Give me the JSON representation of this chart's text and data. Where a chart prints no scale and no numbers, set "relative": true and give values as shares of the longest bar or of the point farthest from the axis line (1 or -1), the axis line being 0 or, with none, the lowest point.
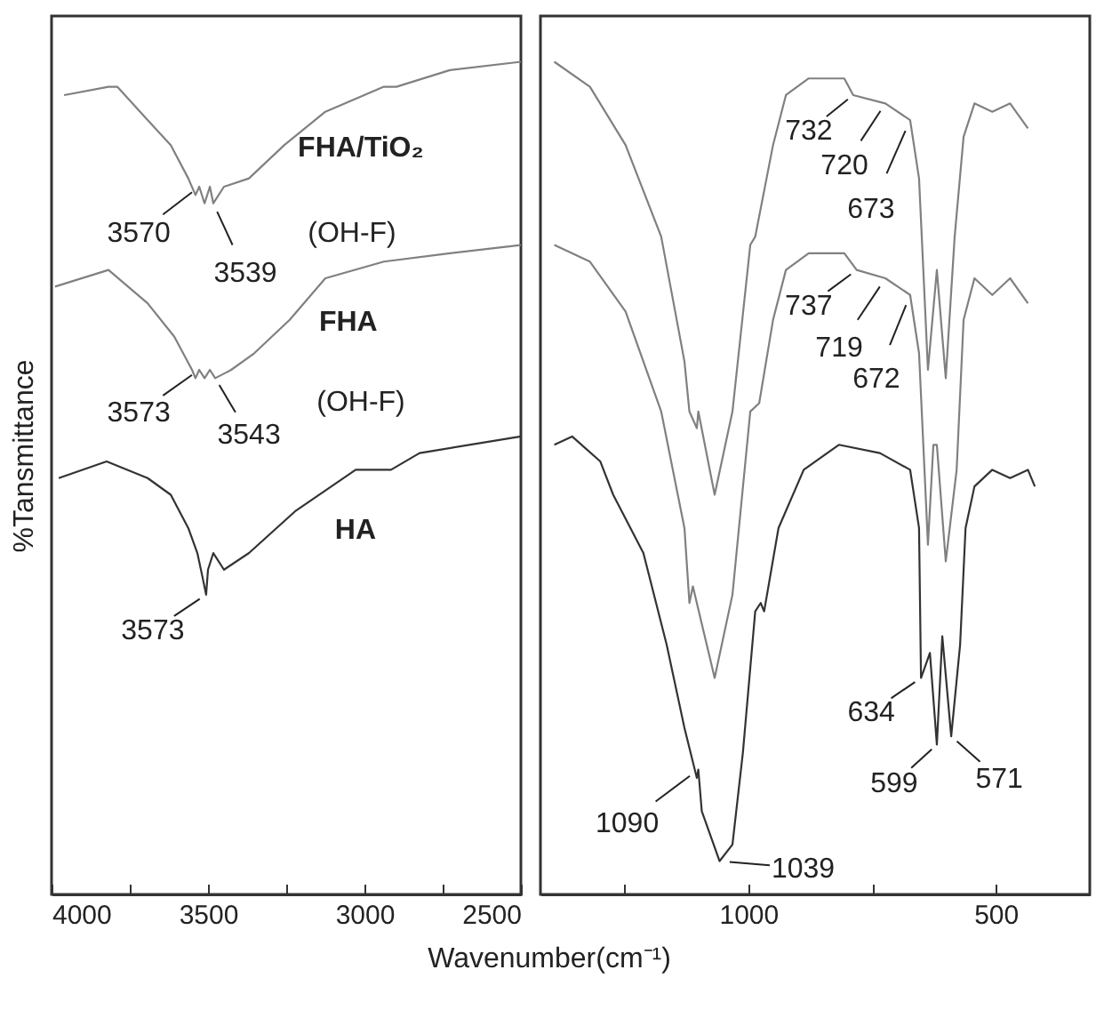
{
  "chart_data": [
    {
      "type": "line",
      "relative": true,
      "ylabel": "%Tansmittance",
      "xlabel": "Wavenumber(cm⁻¹)",
      "xlim": [
        4000,
        2500
      ],
      "xticks": [
        4000,
        {
          "value": 3750,
          "label": null
        },
        3500,
        {
          "value": 3250,
          "label": null
        },
        3000,
        {
          "value": 2750,
          "label": null
        },
        2500
      ],
      "series": [
        {
          "name": "FHA/TiO₂",
          "color": "#808080",
          "x": [
            3960,
            3818,
            3790,
            3693,
            3619,
            3563,
            3540,
            3528,
            3511,
            3494,
            3483,
            3449,
            3369,
            3256,
            3125,
            2938,
            2898,
            2727,
            2500
          ],
          "values": [
            0.96,
            0.97,
            0.97,
            0.93,
            0.9,
            0.86,
            0.84,
            0.85,
            0.83,
            0.85,
            0.83,
            0.85,
            0.86,
            0.9,
            0.94,
            0.97,
            0.97,
            0.99,
            1.0
          ]
        },
        {
          "name": "FHA",
          "color": "#808080",
          "x": [
            3989,
            3818,
            3693,
            3608,
            3551,
            3540,
            3528,
            3511,
            3494,
            3477,
            3426,
            3352,
            3239,
            3125,
            2938,
            2727,
            2500
          ],
          "values": [
            0.73,
            0.75,
            0.71,
            0.67,
            0.63,
            0.62,
            0.63,
            0.62,
            0.63,
            0.62,
            0.63,
            0.65,
            0.69,
            0.74,
            0.76,
            0.77,
            0.78
          ]
        },
        {
          "name": "HA",
          "color": "#333333",
          "x": [
            3977,
            3824,
            3693,
            3619,
            3563,
            3534,
            3517,
            3506,
            3500,
            3483,
            3449,
            3369,
            3222,
            3028,
            2915,
            2824,
            2500
          ],
          "values": [
            0.5,
            0.52,
            0.5,
            0.48,
            0.44,
            0.41,
            0.38,
            0.36,
            0.39,
            0.41,
            0.39,
            0.41,
            0.46,
            0.51,
            0.51,
            0.53,
            0.55
          ]
        }
      ],
      "annotations": [
        {
          "text": "3570",
          "x": 3528,
          "y": 0.85
        },
        {
          "text": "3539",
          "x": 3483,
          "y": 0.83
        },
        "(OH-F)",
        {
          "text": "3573",
          "x": 3528,
          "y": 0.63
        },
        {
          "text": "3543",
          "x": 3477,
          "y": 0.62
        },
        "(OH-F)",
        {
          "text": "3573",
          "x": 3506,
          "y": 0.36
        }
      ]
    },
    {
      "type": "line",
      "relative": true,
      "xlim": [
        1420,
        310
      ],
      "xticks": [
        {
          "value": 1250,
          "label": null
        },
        1000,
        {
          "value": 750,
          "label": null
        },
        500
      ],
      "series": [
        {
          "color": "#808080",
          "x": [
            1392,
            1320,
            1248,
            1176,
            1129,
            1119,
            1104,
            1101,
            1068,
            1032,
            996,
            986,
            950,
            924,
            878,
            806,
            788,
            723,
            673,
            655,
            644,
            637,
            619,
            601,
            583,
            565,
            543,
            507,
            471,
            435
          ],
          "values": [
            1.0,
            0.97,
            0.9,
            0.79,
            0.64,
            0.58,
            0.56,
            0.58,
            0.48,
            0.58,
            0.78,
            0.79,
            0.9,
            0.96,
            0.98,
            0.98,
            0.96,
            0.95,
            0.93,
            0.86,
            0.72,
            0.63,
            0.75,
            0.62,
            0.79,
            0.91,
            0.95,
            0.94,
            0.95,
            0.92
          ]
        },
        {
          "color": "#808080",
          "x": [
            1392,
            1320,
            1248,
            1176,
            1129,
            1119,
            1112,
            1068,
            1032,
            996,
            978,
            950,
            924,
            878,
            806,
            781,
            723,
            673,
            655,
            644,
            637,
            626,
            619,
            601,
            579,
            565,
            543,
            507,
            471,
            435
          ],
          "values": [
            0.78,
            0.76,
            0.7,
            0.58,
            0.44,
            0.35,
            0.37,
            0.26,
            0.36,
            0.58,
            0.59,
            0.69,
            0.75,
            0.77,
            0.77,
            0.75,
            0.74,
            0.72,
            0.65,
            0.51,
            0.42,
            0.54,
            0.54,
            0.4,
            0.51,
            0.69,
            0.74,
            0.72,
            0.74,
            0.71
          ]
        },
        {
          "color": "#333333",
          "x": [
            1392,
            1356,
            1299,
            1273,
            1212,
            1165,
            1129,
            1104,
            1101,
            1094,
            1058,
            1032,
            1011,
            986,
            975,
            968,
            939,
            888,
            817,
            734,
            673,
            655,
            651,
            633,
            619,
            608,
            590,
            572,
            561,
            543,
            507,
            471,
            435,
            421
          ],
          "values": [
            0.54,
            0.55,
            0.52,
            0.48,
            0.41,
            0.3,
            0.2,
            0.14,
            0.15,
            0.1,
            0.04,
            0.06,
            0.17,
            0.34,
            0.35,
            0.34,
            0.44,
            0.51,
            0.54,
            0.53,
            0.51,
            0.44,
            0.26,
            0.29,
            0.18,
            0.31,
            0.19,
            0.3,
            0.44,
            0.49,
            0.51,
            0.5,
            0.51,
            0.49
          ]
        }
      ],
      "annotations": [
        {
          "text": "732",
          "x": 788,
          "y": 0.96
        },
        {
          "text": "720",
          "x": 723,
          "y": 0.95
        },
        {
          "text": "673",
          "x": 673,
          "y": 0.93
        },
        {
          "text": "737",
          "x": 781,
          "y": 0.75
        },
        {
          "text": "719",
          "x": 723,
          "y": 0.74
        },
        {
          "text": "672",
          "x": 673,
          "y": 0.72
        },
        {
          "text": "634",
          "x": 651,
          "y": 0.26
        },
        {
          "text": "599",
          "x": 619,
          "y": 0.18
        },
        {
          "text": "571",
          "x": 590,
          "y": 0.19
        },
        {
          "text": "1090",
          "x": 1101,
          "y": 0.15
        },
        {
          "text": "1039",
          "x": 1058,
          "y": 0.04
        }
      ]
    }
  ]
}
